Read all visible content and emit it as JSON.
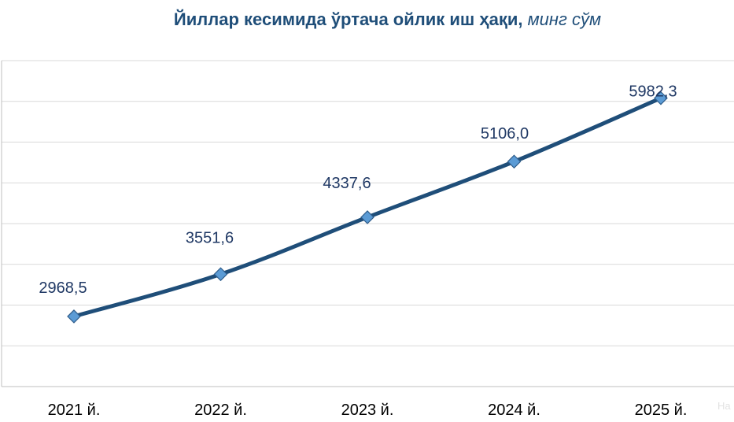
{
  "chart_data": {
    "type": "line",
    "title": "Йиллар кесимида ўртача ойлик иш ҳақи,",
    "subtitle": "минг сўм",
    "categories": [
      "2021 й.",
      "2022 й.",
      "2023 й.",
      "2024 й.",
      "2025 й."
    ],
    "series": [
      {
        "values": [
          2968.5,
          3551.6,
          4337.6,
          5106.0,
          5982.3
        ],
        "labels": [
          "2968,5",
          "3551,6",
          "4337,6",
          "5106,0",
          "5982,3"
        ]
      }
    ],
    "ylim": [
      2000,
      6500
    ],
    "grid": true,
    "legend": "none",
    "colors": {
      "line": "#1f4e79",
      "marker_fill": "#5b9bd5",
      "marker_stroke": "#2e5c8a",
      "label": "#1f3864",
      "title": "#1f4e79"
    }
  },
  "watermark": "На"
}
